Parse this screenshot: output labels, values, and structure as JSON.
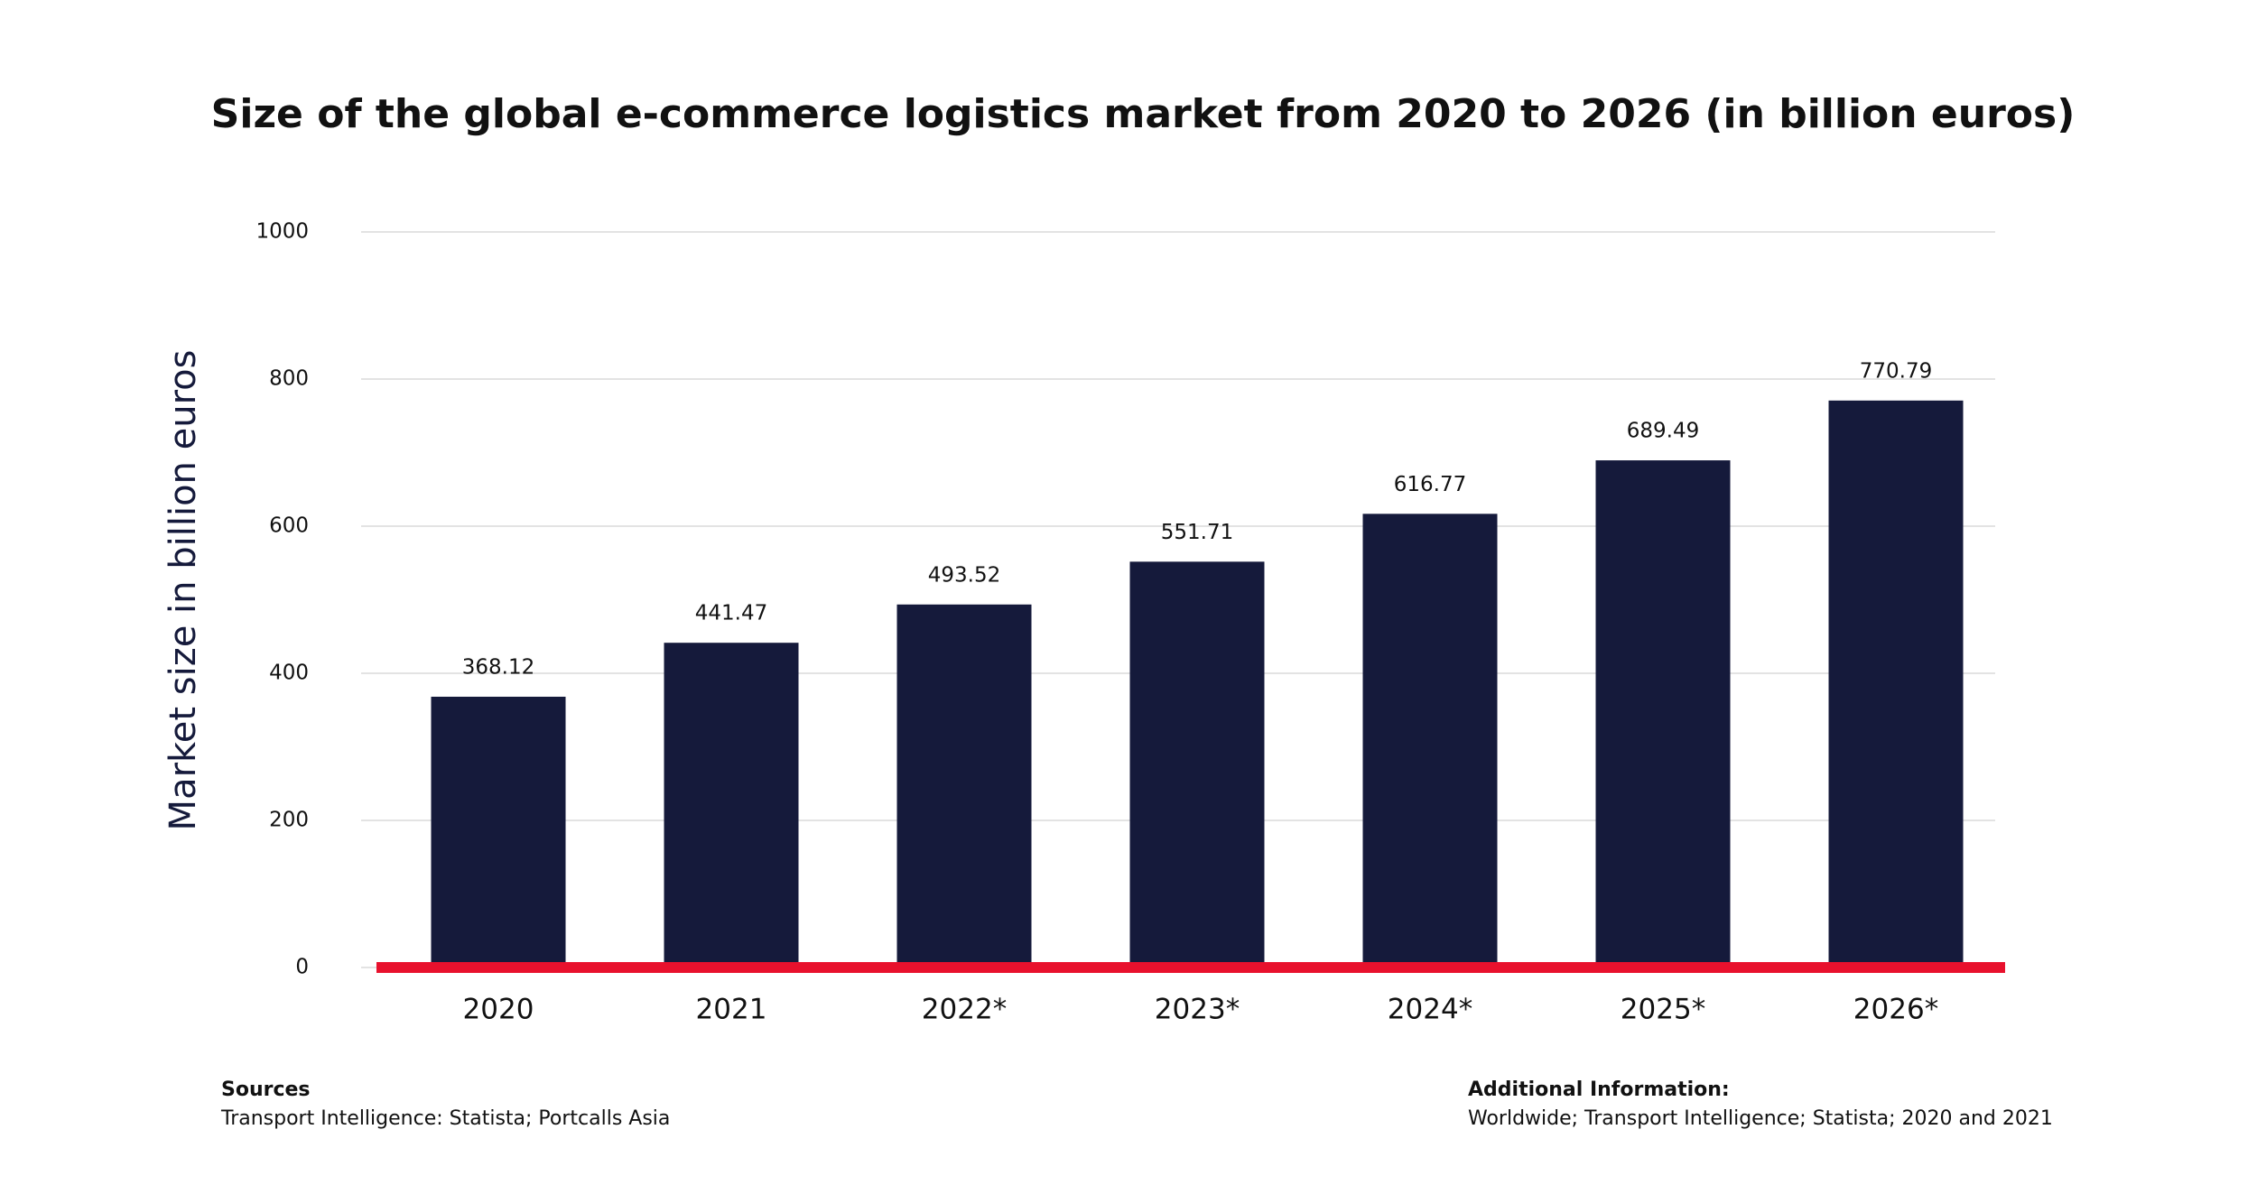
{
  "chart_data": {
    "type": "bar",
    "title": "Size of the global e-commerce logistics market from 2020 to 2026 (in billion euros)",
    "y_label": "Market size in billion euros",
    "categories": [
      "2020",
      "2021",
      "2022*",
      "2023*",
      "2024*",
      "2025*",
      "2026*"
    ],
    "values": [
      368.12,
      441.47,
      493.52,
      551.71,
      616.77,
      689.49,
      770.79
    ],
    "color": "#151a3b",
    "ylim": [
      0,
      1000
    ],
    "yticks": [
      0,
      200,
      400,
      600,
      800,
      1000
    ],
    "grid": true,
    "sources_heading": "Sources",
    "sources": "Transport Intelligence: Statista; Portcalls Asia",
    "additional_heading": "Additional Information:",
    "additional": "Worldwide; Transport Intelligence; Statista; 2020 and 2021"
  }
}
